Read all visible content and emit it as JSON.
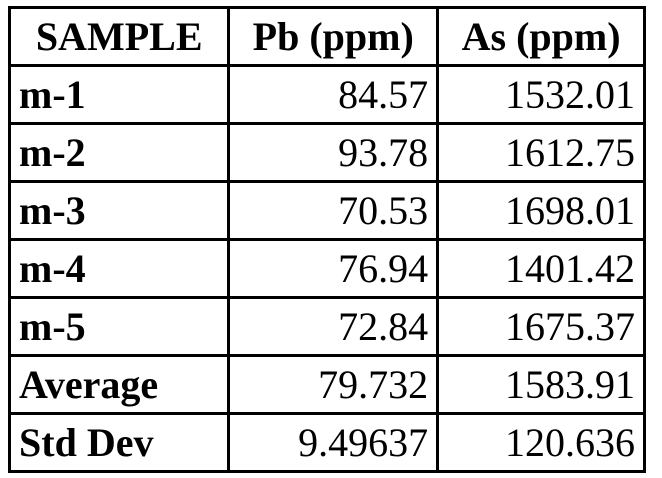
{
  "table": {
    "headers": [
      "SAMPLE",
      "Pb (ppm)",
      "As (ppm)"
    ],
    "rows": [
      {
        "sample": "m-1",
        "pb": "84.57",
        "as": "1532.01"
      },
      {
        "sample": "m-2",
        "pb": "93.78",
        "as": "1612.75"
      },
      {
        "sample": "m-3",
        "pb": "70.53",
        "as": "1698.01"
      },
      {
        "sample": "m-4",
        "pb": "76.94",
        "as": "1401.42"
      },
      {
        "sample": "m-5",
        "pb": "72.84",
        "as": "1675.37"
      },
      {
        "sample": "Average",
        "pb": "79.732",
        "as": "1583.91"
      },
      {
        "sample": "Std Dev",
        "pb": "9.49637",
        "as": "120.636"
      }
    ]
  }
}
